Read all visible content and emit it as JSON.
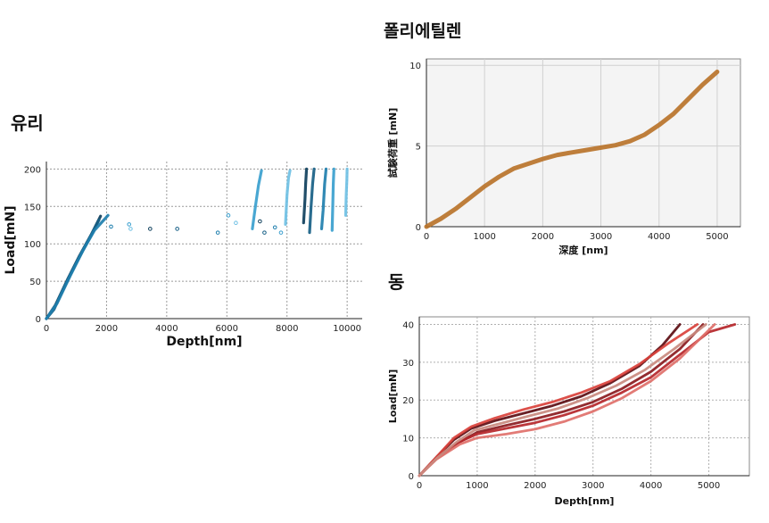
{
  "panels": {
    "glass": {
      "title": "유리"
    },
    "polyethylene": {
      "title": "폴리에틸렌"
    },
    "copper": {
      "title": "동"
    }
  },
  "colors": {
    "glass_series": [
      "#0e3f5c",
      "#175f86",
      "#1f7fae",
      "#3a9fce",
      "#6fc0e4"
    ],
    "pe_curve": "#b8732a",
    "cu_series": [
      "#5c0d12",
      "#8a1a1e",
      "#b5262a",
      "#d9413b",
      "#e0706a",
      "#c98a7f"
    ]
  },
  "chart_data": [
    {
      "id": "glass",
      "type": "line",
      "title": "유리",
      "xlabel": "Depth[nm]",
      "ylabel": "Load[mN]",
      "xlim": [
        0,
        10500
      ],
      "ylim": [
        0,
        210
      ],
      "xticks": [
        0,
        2000,
        4000,
        6000,
        8000,
        10000
      ],
      "yticks": [
        0,
        50,
        100,
        150,
        200
      ],
      "grid": true,
      "series": [
        {
          "values": [
            [
              0,
              0
            ],
            [
              300,
              18
            ],
            [
              700,
              52
            ],
            [
              1100,
              84
            ],
            [
              1500,
              113
            ],
            [
              1800,
              137
            ]
          ]
        },
        {
          "values": [
            [
              0,
              0
            ],
            [
              250,
              12
            ],
            [
              650,
              47
            ],
            [
              1000,
              75
            ],
            [
              1400,
              105
            ],
            [
              1750,
              132
            ]
          ]
        },
        {
          "values": [
            [
              0,
              0
            ],
            [
              350,
              20
            ],
            [
              800,
              58
            ],
            [
              1200,
              90
            ],
            [
              1600,
              118
            ],
            [
              2050,
              138
            ]
          ]
        },
        {
          "values": [
            [
              6850,
              120
            ],
            [
              6950,
              150
            ],
            [
              7050,
              178
            ],
            [
              7150,
              198
            ]
          ]
        },
        {
          "values": [
            [
              7950,
              126
            ],
            [
              8000,
              165
            ],
            [
              8050,
              188
            ],
            [
              8100,
              198
            ]
          ]
        },
        {
          "values": [
            [
              8550,
              128
            ],
            [
              8600,
              160
            ],
            [
              8620,
              180
            ],
            [
              8650,
              200
            ]
          ]
        },
        {
          "values": [
            [
              8750,
              115
            ],
            [
              8800,
              150
            ],
            [
              8850,
              180
            ],
            [
              8900,
              200
            ]
          ]
        },
        {
          "values": [
            [
              9150,
              120
            ],
            [
              9200,
              145
            ],
            [
              9250,
              180
            ],
            [
              9300,
              200
            ]
          ]
        },
        {
          "values": [
            [
              9500,
              118
            ],
            [
              9520,
              150
            ],
            [
              9540,
              180
            ],
            [
              9560,
              200
            ]
          ]
        },
        {
          "values": [
            [
              9950,
              138
            ],
            [
              9970,
              165
            ],
            [
              9990,
              185
            ],
            [
              10000,
              200
            ]
          ]
        }
      ],
      "scatter": [
        [
          2150,
          123
        ],
        [
          2750,
          126
        ],
        [
          2800,
          120
        ],
        [
          3450,
          120
        ],
        [
          4350,
          120
        ],
        [
          5700,
          115
        ],
        [
          6050,
          138
        ],
        [
          6300,
          128
        ],
        [
          7100,
          130
        ],
        [
          7250,
          115
        ],
        [
          7600,
          122
        ],
        [
          7800,
          115
        ]
      ]
    },
    {
      "id": "polyethylene",
      "type": "line",
      "title": "폴리에틸렌",
      "xlabel": "深度 [nm]",
      "ylabel": "試験荷重 [mN]",
      "xlim": [
        0,
        5400
      ],
      "ylim": [
        0,
        10.4
      ],
      "xticks": [
        0,
        1000,
        2000,
        3000,
        4000,
        5000
      ],
      "yticks": [
        0,
        5,
        10
      ],
      "grid": true,
      "series": [
        {
          "values": [
            [
              0,
              0
            ],
            [
              250,
              0.5
            ],
            [
              500,
              1.1
            ],
            [
              750,
              1.8
            ],
            [
              1000,
              2.5
            ],
            [
              1250,
              3.1
            ],
            [
              1500,
              3.6
            ],
            [
              1750,
              3.9
            ],
            [
              2000,
              4.2
            ],
            [
              2250,
              4.45
            ],
            [
              2500,
              4.6
            ],
            [
              2750,
              4.75
            ],
            [
              3000,
              4.9
            ],
            [
              3250,
              5.05
            ],
            [
              3500,
              5.3
            ],
            [
              3750,
              5.7
            ],
            [
              4000,
              6.3
            ],
            [
              4250,
              7.0
            ],
            [
              4500,
              7.9
            ],
            [
              4750,
              8.8
            ],
            [
              5000,
              9.6
            ]
          ]
        }
      ]
    },
    {
      "id": "copper",
      "type": "line",
      "title": "동",
      "xlabel": "Depth[nm]",
      "ylabel": "Load[mN]",
      "xlim": [
        0,
        5700
      ],
      "ylim": [
        0,
        42
      ],
      "xticks": [
        0,
        1000,
        2000,
        3000,
        4000,
        5000
      ],
      "yticks": [
        0,
        10,
        20,
        30,
        40
      ],
      "grid": true,
      "series": [
        {
          "values": [
            [
              0,
              0
            ],
            [
              300,
              5
            ],
            [
              600,
              9.5
            ],
            [
              900,
              12.5
            ],
            [
              1300,
              14.5
            ],
            [
              1800,
              16.5
            ],
            [
              2300,
              18.5
            ],
            [
              2800,
              21
            ],
            [
              3300,
              24.5
            ],
            [
              3800,
              29
            ],
            [
              4200,
              34.5
            ],
            [
              4500,
              40
            ]
          ]
        },
        {
          "values": [
            [
              0,
              0
            ],
            [
              300,
              4.5
            ],
            [
              650,
              8.5
            ],
            [
              1000,
              11.5
            ],
            [
              1500,
              13.3
            ],
            [
              2000,
              15
            ],
            [
              2500,
              17
            ],
            [
              3000,
              19.5
            ],
            [
              3500,
              23
            ],
            [
              4000,
              27.5
            ],
            [
              4500,
              33.5
            ],
            [
              4900,
              40
            ]
          ]
        },
        {
          "values": [
            [
              0,
              0
            ],
            [
              300,
              4.8
            ],
            [
              700,
              9
            ],
            [
              1000,
              11
            ],
            [
              1500,
              12.5
            ],
            [
              2000,
              14
            ],
            [
              2500,
              16
            ],
            [
              3000,
              18.5
            ],
            [
              3500,
              22
            ],
            [
              4000,
              26
            ],
            [
              4500,
              32
            ],
            [
              5000,
              38
            ],
            [
              5450,
              40
            ]
          ]
        },
        {
          "values": [
            [
              0,
              0
            ],
            [
              300,
              5
            ],
            [
              600,
              10
            ],
            [
              900,
              13
            ],
            [
              1300,
              15.2
            ],
            [
              1800,
              17.5
            ],
            [
              2300,
              19.5
            ],
            [
              2800,
              22
            ],
            [
              3300,
              25
            ],
            [
              3800,
              29.5
            ],
            [
              4300,
              35
            ],
            [
              4800,
              40
            ]
          ]
        },
        {
          "values": [
            [
              0,
              0
            ],
            [
              300,
              4.4
            ],
            [
              700,
              8.3
            ],
            [
              1000,
              10
            ],
            [
              1500,
              11
            ],
            [
              2000,
              12.3
            ],
            [
              2500,
              14.3
            ],
            [
              3000,
              17
            ],
            [
              3500,
              20.5
            ],
            [
              4000,
              25
            ],
            [
              4500,
              31
            ],
            [
              5100,
              40
            ]
          ]
        },
        {
          "values": [
            [
              0,
              0
            ],
            [
              300,
              4.6
            ],
            [
              650,
              9
            ],
            [
              950,
              12
            ],
            [
              1400,
              13.8
            ],
            [
              1900,
              15.8
            ],
            [
              2400,
              17.8
            ],
            [
              2900,
              20.5
            ],
            [
              3400,
              23.8
            ],
            [
              3900,
              28
            ],
            [
              4400,
              33.5
            ],
            [
              4950,
              40
            ]
          ]
        }
      ]
    }
  ]
}
